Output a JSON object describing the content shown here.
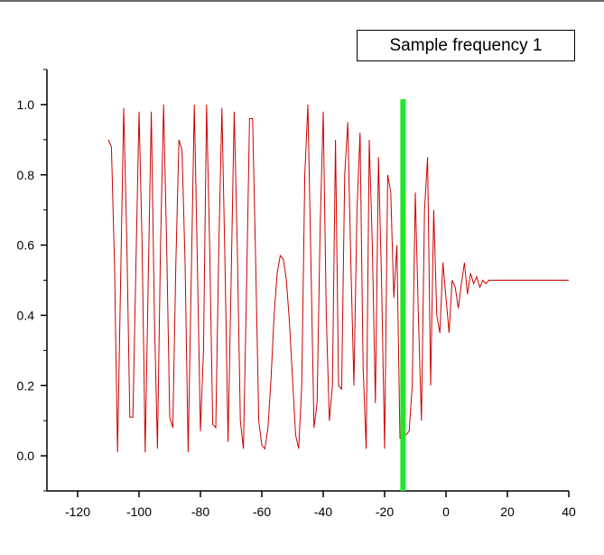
{
  "chart_data": {
    "type": "line",
    "title": "",
    "xlabel": "",
    "ylabel": "",
    "xlim": [
      -130,
      40
    ],
    "ylim": [
      -0.1,
      1.1
    ],
    "x_ticks": [
      -120,
      -100,
      -80,
      -60,
      -40,
      -20,
      0,
      20,
      40
    ],
    "y_ticks": [
      0.0,
      0.2,
      0.4,
      0.6,
      0.8,
      1.0
    ],
    "x_tick_labels": [
      "-120",
      "-100",
      "-80",
      "-60",
      "-40",
      "-20",
      "0",
      "20",
      "40"
    ],
    "y_tick_labels": [
      "0.0",
      "0.2",
      "0.4",
      "0.6",
      "0.8",
      "1.0"
    ],
    "grid": false,
    "legend_placement": "top-right",
    "series": [
      {
        "name": "Sample frequency 1",
        "color": "#cc0000",
        "x": [
          -110,
          -109,
          -108,
          -107,
          -106,
          -105,
          -104,
          -103,
          -102,
          -101,
          -100,
          -99,
          -98,
          -97,
          -96,
          -95,
          -94,
          -93,
          -92,
          -91,
          -90,
          -89,
          -88,
          -87,
          -86,
          -85,
          -84,
          -83,
          -82,
          -81,
          -80,
          -79,
          -78,
          -77,
          -76,
          -75,
          -74,
          -73,
          -72,
          -71,
          -70,
          -69,
          -68,
          -67,
          -66,
          -65,
          -64,
          -63,
          -62,
          -61,
          -60,
          -59,
          -58,
          -57,
          -56,
          -55,
          -54,
          -53,
          -52,
          -51,
          -50,
          -49,
          -48,
          -47,
          -46,
          -45,
          -44,
          -43,
          -42,
          -41,
          -40,
          -39,
          -38,
          -37,
          -36,
          -35,
          -34,
          -33,
          -32,
          -31,
          -30,
          -29,
          -28,
          -27,
          -26,
          -25,
          -24,
          -23,
          -22,
          -21,
          -20,
          -19,
          -18,
          -17,
          -16,
          -15,
          -14,
          -13,
          -12,
          -11,
          -10,
          -9,
          -8,
          -7,
          -6,
          -5,
          -4,
          -3,
          -2,
          -1,
          0,
          1,
          2,
          3,
          4,
          5,
          6,
          7,
          8,
          9,
          10,
          11,
          12,
          13,
          14,
          15,
          16,
          17,
          18,
          19,
          20,
          22,
          24,
          26,
          28,
          30,
          32,
          34,
          36,
          38,
          40
        ],
        "values": [
          0.9,
          0.88,
          0.55,
          0.01,
          0.5,
          0.99,
          0.62,
          0.11,
          0.11,
          0.55,
          0.98,
          0.6,
          0.01,
          0.5,
          0.98,
          0.4,
          0.02,
          0.6,
          1.0,
          0.6,
          0.11,
          0.08,
          0.55,
          0.9,
          0.87,
          0.55,
          0.01,
          0.5,
          1.0,
          0.55,
          0.07,
          0.3,
          1.0,
          0.6,
          0.09,
          0.08,
          0.6,
          0.99,
          0.55,
          0.04,
          0.5,
          0.98,
          0.6,
          0.1,
          0.02,
          0.47,
          0.96,
          0.96,
          0.55,
          0.1,
          0.03,
          0.02,
          0.08,
          0.22,
          0.4,
          0.52,
          0.57,
          0.56,
          0.5,
          0.38,
          0.22,
          0.06,
          0.02,
          0.2,
          0.8,
          1.0,
          0.55,
          0.08,
          0.15,
          0.65,
          0.98,
          0.4,
          0.1,
          0.2,
          0.9,
          0.2,
          0.19,
          0.8,
          0.95,
          0.55,
          0.2,
          0.7,
          0.92,
          0.25,
          0.02,
          0.9,
          0.6,
          0.15,
          0.85,
          0.5,
          0.02,
          0.8,
          0.75,
          0.45,
          0.6,
          0.05,
          0.05,
          0.06,
          0.07,
          0.2,
          0.75,
          0.4,
          0.1,
          0.7,
          0.85,
          0.2,
          0.7,
          0.4,
          0.35,
          0.55,
          0.45,
          0.35,
          0.5,
          0.48,
          0.42,
          0.49,
          0.55,
          0.46,
          0.52,
          0.49,
          0.51,
          0.48,
          0.5,
          0.49,
          0.5,
          0.5,
          0.5,
          0.5,
          0.5,
          0.5,
          0.5,
          0.5,
          0.5,
          0.5,
          0.5,
          0.5,
          0.5,
          0.5,
          0.5,
          0.5,
          0.5
        ]
      }
    ],
    "vertical_marker": {
      "x": -14,
      "color": "#22e62a"
    }
  },
  "legend": {
    "label": "Sample frequency 1"
  }
}
